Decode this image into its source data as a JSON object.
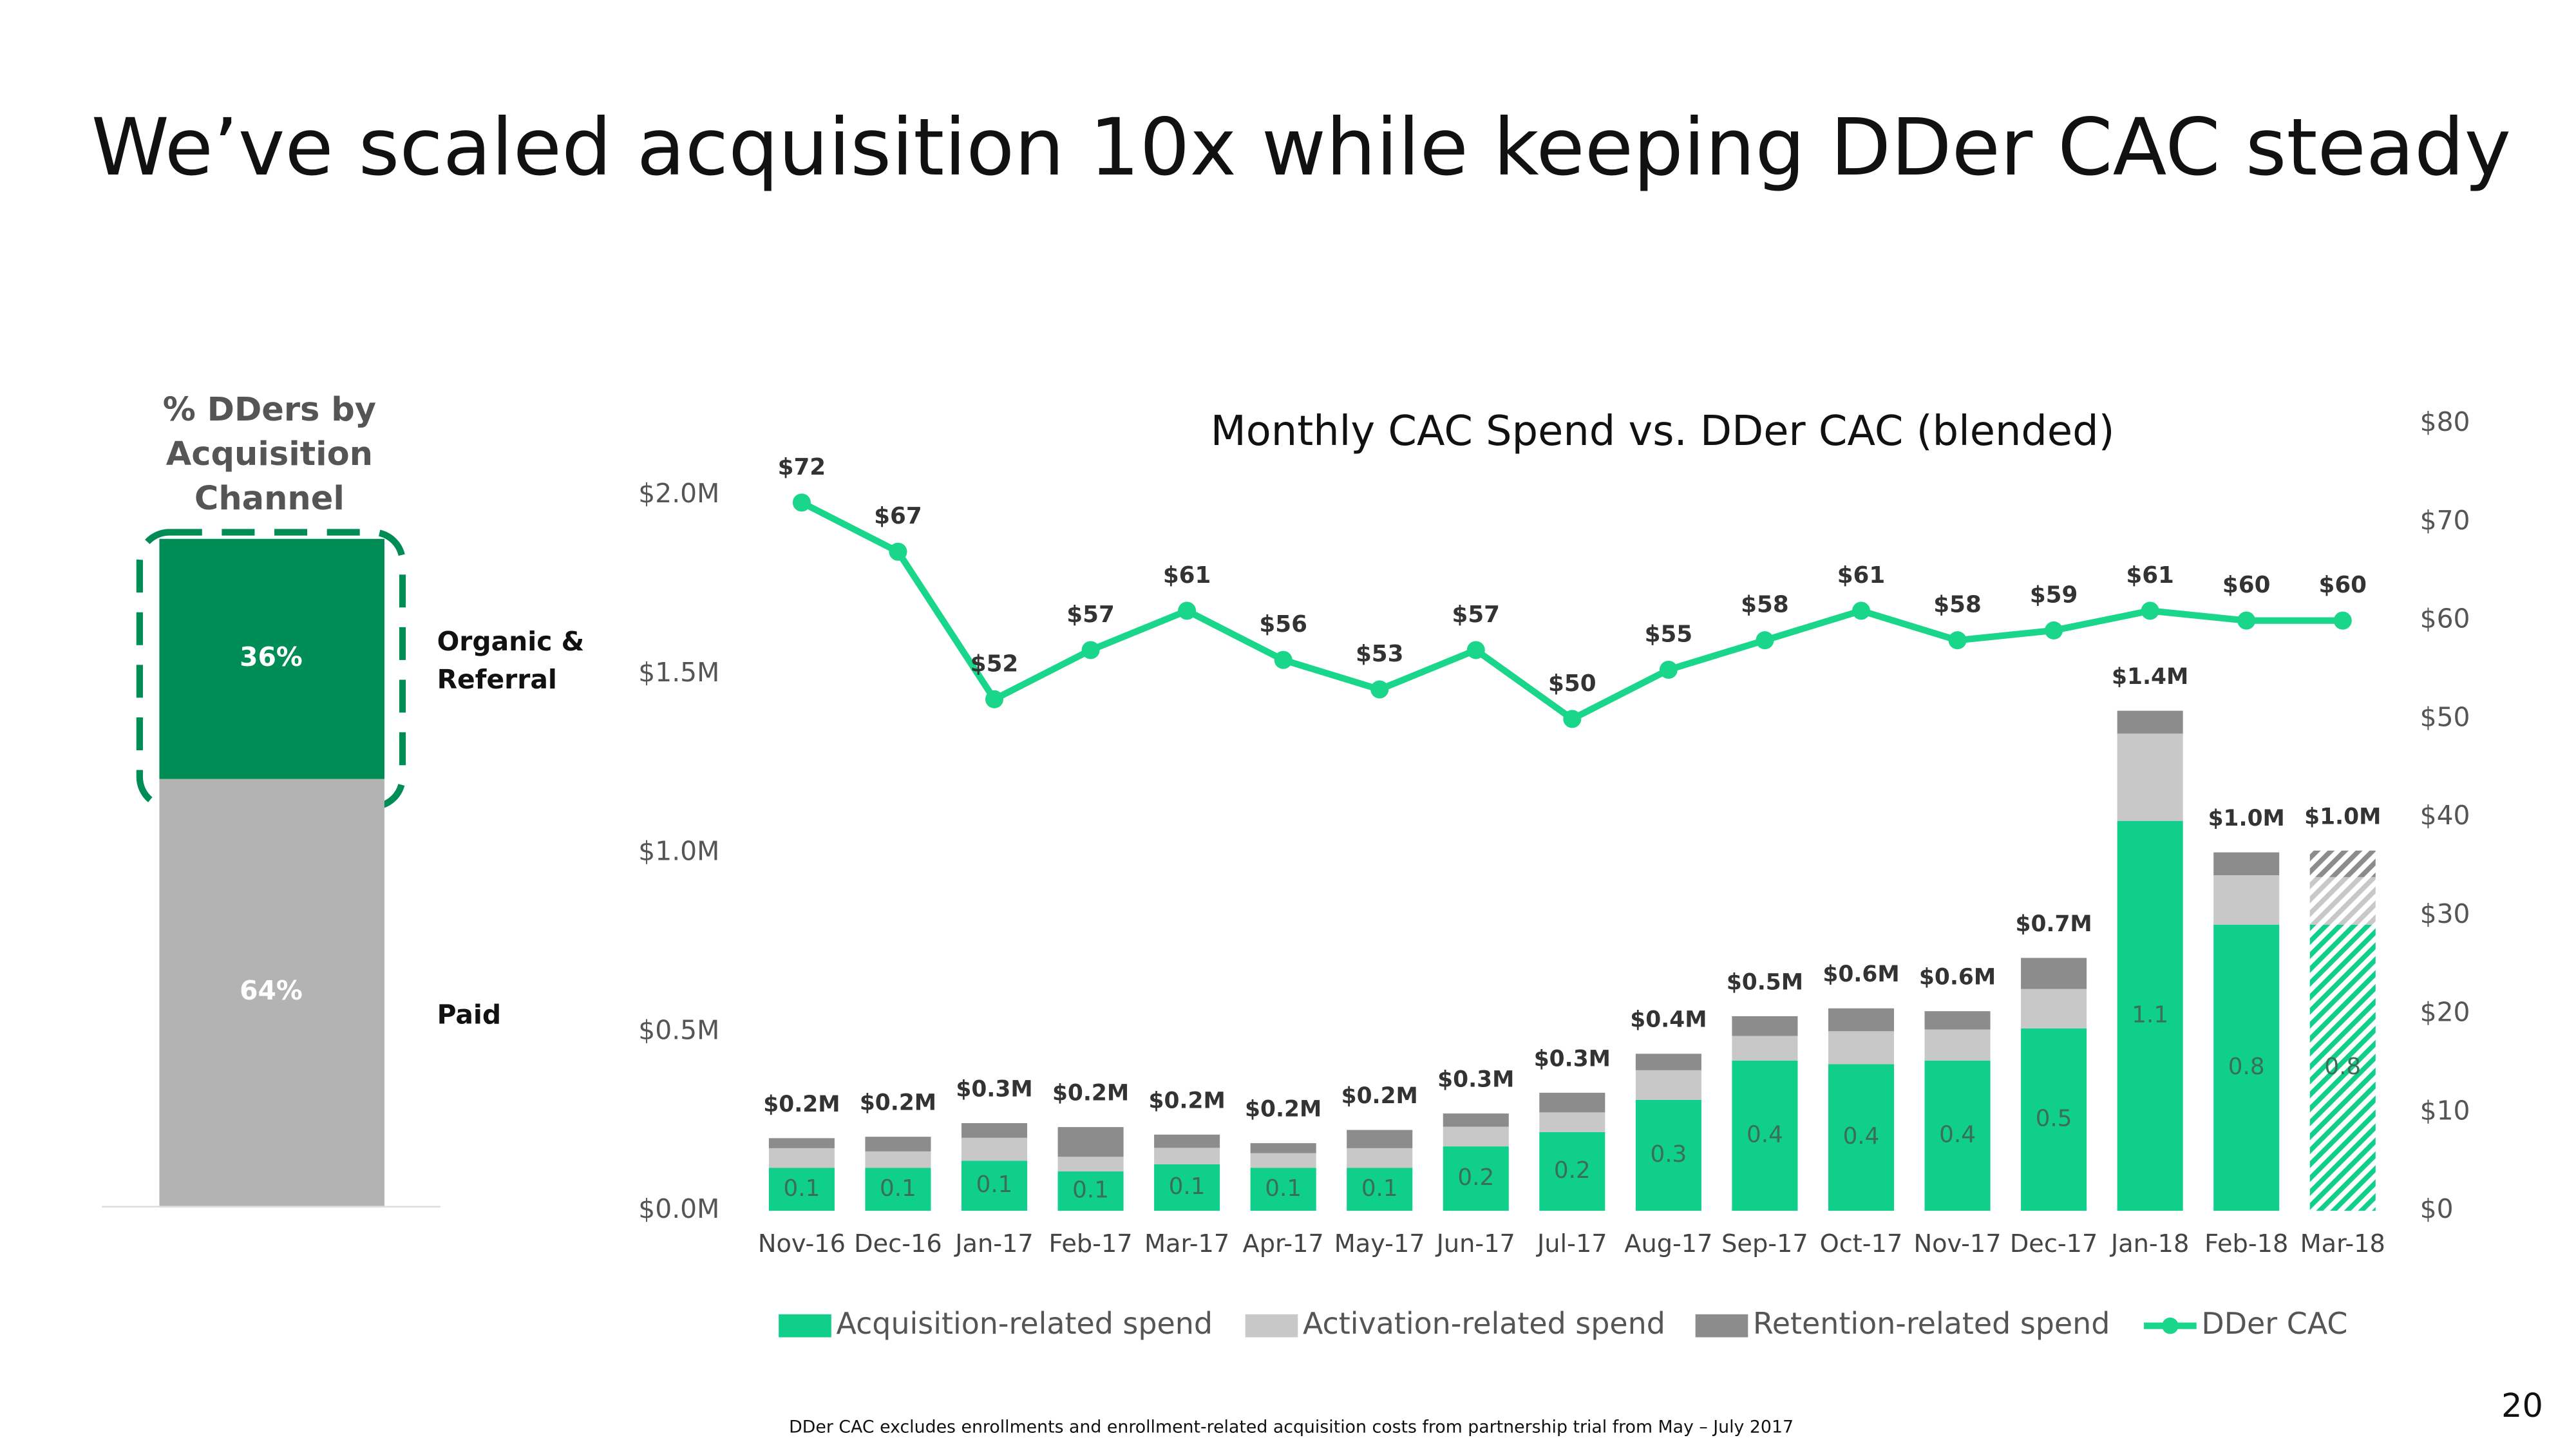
{
  "title": "We’ve scaled acquisition 10x while keeping DDer CAC steady",
  "page_number": "20",
  "footnote": "DDer CAC excludes enrollments and enrollment-related acquisition costs from partnership trial from May – July 2017",
  "chart_data": [
    {
      "type": "stacked_bar",
      "title": "% DDers by Acquisition Channel",
      "ylim": [
        0,
        100
      ],
      "series": [
        {
          "name": "Paid",
          "color": "#b3b3b3",
          "values": [
            64
          ],
          "value_labels": [
            "64%"
          ]
        },
        {
          "name": "Organic & Referral",
          "color": "#008c55",
          "values": [
            36
          ],
          "value_labels": [
            "36%"
          ]
        }
      ]
    },
    {
      "type": "stacked_bar_line",
      "title": "Monthly CAC Spend vs. DDer CAC (blended)",
      "categories": [
        "Nov-16",
        "Dec-16",
        "Jan-17",
        "Feb-17",
        "Mar-17",
        "Apr-17",
        "May-17",
        "Jun-17",
        "Jul-17",
        "Aug-17",
        "Sep-17",
        "Oct-17",
        "Nov-17",
        "Dec-17",
        "Jan-18",
        "Feb-18",
        "Mar-18"
      ],
      "ylim": [
        0,
        2.2
      ],
      "yticks": [
        {
          "value": 0,
          "label": "$0.0M"
        },
        {
          "value": 0.5,
          "label": "$0.5M"
        },
        {
          "value": 1,
          "label": "$1.0M"
        },
        {
          "value": 1.5,
          "label": "$1.5M"
        },
        {
          "value": 2,
          "label": "$2.0M"
        }
      ],
      "y2lim": [
        0,
        80
      ],
      "y2ticks": [
        {
          "value": 0,
          "label": "$0"
        },
        {
          "value": 10,
          "label": "$10"
        },
        {
          "value": 20,
          "label": "$20"
        },
        {
          "value": 30,
          "label": "$30"
        },
        {
          "value": 40,
          "label": "$40"
        },
        {
          "value": 50,
          "label": "$50"
        },
        {
          "value": 60,
          "label": "$60"
        },
        {
          "value": 70,
          "label": "$70"
        },
        {
          "value": 80,
          "label": "$80"
        }
      ],
      "hatch_last": true,
      "series": [
        {
          "name": "Acquisition-related spend",
          "color": "#0fcf8a",
          "values": [
            0.12,
            0.12,
            0.14,
            0.11,
            0.13,
            0.12,
            0.12,
            0.18,
            0.22,
            0.31,
            0.42,
            0.41,
            0.42,
            0.51,
            1.09,
            0.8,
            0.8
          ],
          "value_labels": [
            "0.1",
            "0.1",
            "0.1",
            "0.1",
            "0.1",
            "0.1",
            "0.1",
            "0.2",
            "0.2",
            "0.3",
            "0.4",
            "0.4",
            "0.4",
            "0.5",
            "1.1",
            "0.8",
            "0.8"
          ]
        },
        {
          "name": "Activation-related spend",
          "color": "#c8c8c8",
          "values": [
            0.055,
            0.046,
            0.064,
            0.041,
            0.046,
            0.041,
            0.055,
            0.055,
            0.055,
            0.083,
            0.069,
            0.092,
            0.087,
            0.11,
            0.244,
            0.138,
            0.133
          ]
        },
        {
          "name": "Retention-related spend",
          "color": "#8c8c8c",
          "values": [
            0.028,
            0.041,
            0.041,
            0.083,
            0.037,
            0.028,
            0.051,
            0.037,
            0.055,
            0.046,
            0.055,
            0.064,
            0.051,
            0.087,
            0.064,
            0.064,
            0.074
          ]
        },
        {
          "name": "DDer CAC",
          "color": "#1ad68a",
          "axis": "y2",
          "type": "line",
          "values": [
            72,
            67,
            52,
            57,
            61,
            56,
            53,
            57,
            50,
            55,
            58,
            61,
            58,
            59,
            61,
            60,
            60
          ],
          "value_labels": [
            "$72",
            "$67",
            "$52",
            "$57",
            "$61",
            "$56",
            "$53",
            "$57",
            "$50",
            "$55",
            "$58",
            "$61",
            "$58",
            "$59",
            "$61",
            "$60",
            "$60"
          ]
        }
      ],
      "totals": {
        "values": [
          0.2,
          0.2,
          0.3,
          0.2,
          0.2,
          0.2,
          0.2,
          0.3,
          0.3,
          0.4,
          0.5,
          0.6,
          0.6,
          0.7,
          1.4,
          1.0,
          1.0
        ],
        "value_labels": [
          "$0.2M",
          "$0.2M",
          "$0.3M",
          "$0.2M",
          "$0.2M",
          "$0.2M",
          "$0.2M",
          "$0.3M",
          "$0.3M",
          "$0.4M",
          "$0.5M",
          "$0.6M",
          "$0.6M",
          "$0.7M",
          "$1.4M",
          "$1.0M",
          "$1.0M"
        ]
      }
    }
  ]
}
